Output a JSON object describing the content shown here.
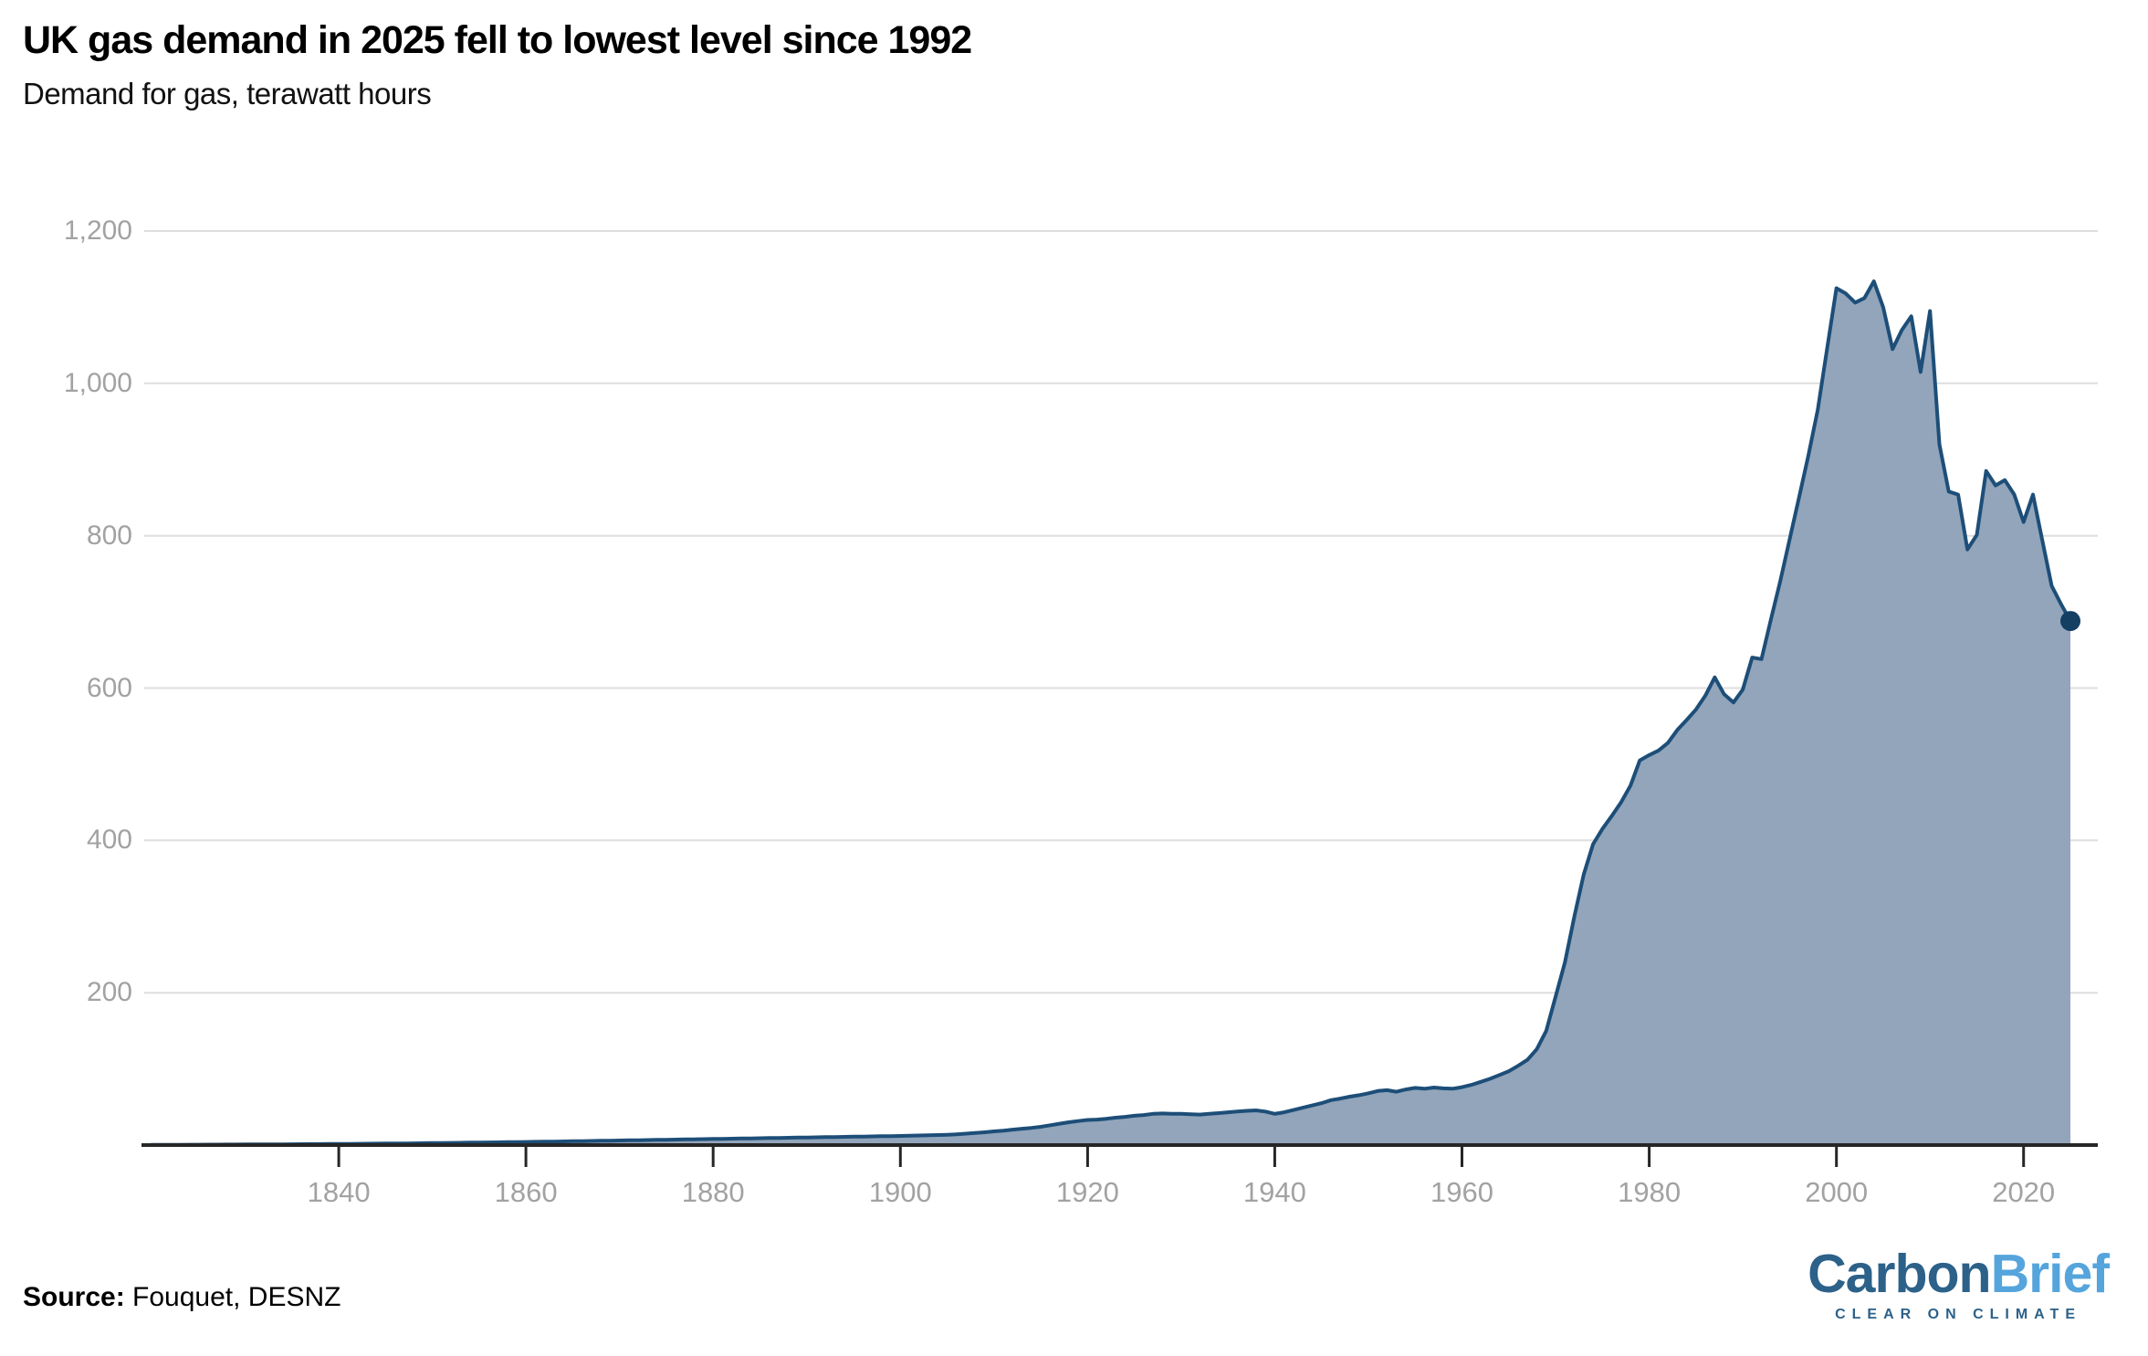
{
  "header": {
    "title": "UK gas demand in 2025 fell to lowest level since 1992",
    "subtitle": "Demand for gas, terawatt hours"
  },
  "source": {
    "label": "Source:",
    "text": " Fouquet, DESNZ"
  },
  "logo": {
    "brand_primary": "Carbon",
    "brand_secondary": "Brief",
    "tagline": "CLEAR ON CLIMATE"
  },
  "colors": {
    "area_fill": "#92a5bb",
    "line": "#1d4e78",
    "dot": "#143f63",
    "grid": "#dedede",
    "axis": "#262626",
    "tick": "#262626",
    "tick_label": "#a2a2a2",
    "logo_dark": "#2c6189",
    "logo_light": "#55a5dc"
  },
  "chart_data": {
    "type": "area",
    "title": "UK gas demand in 2025 fell to lowest level since 1992",
    "ylabel": "Demand for gas, terawatt hours",
    "xlabel": "",
    "grid": "horizontal-only",
    "legend": "none",
    "x_start_year": 1820,
    "x_end_year": 2025,
    "x_frequency": "annual",
    "x_tick_years": [
      1840,
      1860,
      1880,
      1900,
      1920,
      1940,
      1960,
      1980,
      2000,
      2020
    ],
    "y_ticks": [
      200,
      400,
      600,
      800,
      1000,
      1200
    ],
    "y_tick_labels": [
      "200",
      "400",
      "600",
      "800",
      "1,000",
      "1,200"
    ],
    "ylim": [
      0,
      1260
    ],
    "end_point": {
      "year": 2025,
      "value": 688
    },
    "series": [
      {
        "name": "UK gas demand (TWh)",
        "values": [
          0.3,
          0.3,
          0.4,
          0.4,
          0.5,
          0.5,
          0.6,
          0.6,
          0.7,
          0.7,
          0.8,
          0.8,
          0.9,
          1.0,
          1.0,
          1.1,
          1.2,
          1.3,
          1.3,
          1.4,
          1.5,
          1.6,
          1.7,
          1.8,
          1.9,
          2.0,
          2.1,
          2.2,
          2.3,
          2.5,
          2.6,
          2.7,
          2.9,
          3.0,
          3.2,
          3.3,
          3.5,
          3.6,
          3.8,
          3.9,
          4.1,
          4.3,
          4.5,
          4.6,
          4.8,
          5.0,
          5.2,
          5.4,
          5.6,
          5.8,
          6.0,
          6.2,
          6.4,
          6.6,
          6.8,
          7.0,
          7.2,
          7.4,
          7.6,
          7.8,
          8.0,
          8.2,
          8.4,
          8.6,
          8.8,
          9.0,
          9.2,
          9.4,
          9.6,
          9.8,
          10.0,
          10.2,
          10.4,
          10.6,
          10.8,
          11.0,
          11.2,
          11.4,
          11.6,
          11.8,
          12.0,
          12.3,
          12.6,
          12.9,
          13.2,
          13.5,
          14.2,
          15.0,
          15.8,
          16.8,
          18.0,
          19.0,
          20.2,
          21.5,
          22.5,
          24.0,
          26.0,
          28.0,
          30.0,
          31.5,
          33.0,
          33.5,
          34.5,
          36.0,
          37.0,
          38.5,
          39.5,
          41.0,
          41.5,
          41.0,
          41.0,
          40.5,
          40.0,
          41.0,
          42.0,
          43.0,
          44.0,
          45.0,
          45.5,
          44.0,
          41.0,
          43.0,
          46.0,
          49.0,
          52.0,
          55.0,
          59.0,
          61.0,
          63.5,
          65.5,
          68.0,
          71.0,
          72.0,
          70.0,
          73.0,
          75.0,
          74.0,
          75.5,
          74.5,
          74.0,
          76,
          79,
          83,
          87,
          92,
          97,
          104,
          112,
          126,
          150,
          195,
          240,
          300,
          355,
          395,
          415,
          432,
          450,
          472,
          505,
          512,
          518,
          528,
          545,
          558,
          572,
          590,
          614,
          592,
          581,
          598,
          640,
          638,
          690,
          740,
          795,
          850,
          905,
          965,
          1045,
          1125,
          1118,
          1106,
          1112,
          1134,
          1100,
          1045,
          1070,
          1088,
          1015,
          1095,
          920,
          858,
          854,
          782,
          801,
          885,
          866,
          873,
          854,
          818,
          854,
          794,
          734,
          710,
          688
        ]
      }
    ]
  }
}
